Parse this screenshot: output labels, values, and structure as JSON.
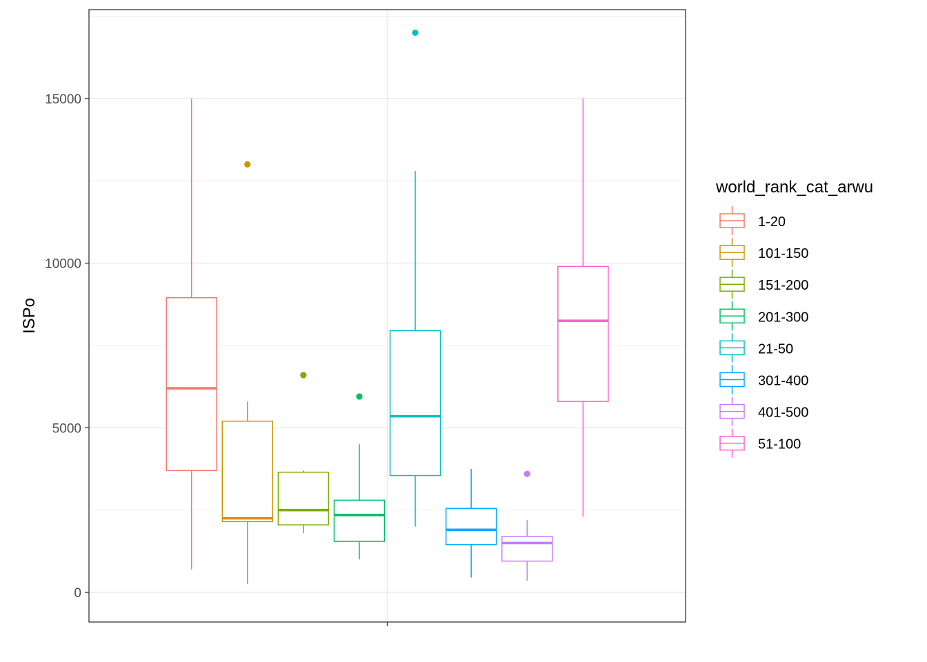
{
  "chart_data": {
    "type": "boxplot",
    "title": "",
    "xlabel": "",
    "ylabel": "ISPo",
    "ylim": [
      -900,
      17700
    ],
    "yticks": [
      0,
      5000,
      10000,
      15000
    ],
    "ytick_labels": [
      "0",
      "5000",
      "10000",
      "15000"
    ],
    "grid": true,
    "legend": {
      "title": "world_rank_cat_arwu",
      "position": "right"
    },
    "series": [
      {
        "name": "1-20",
        "color": "#F8766D",
        "min": 700,
        "q1": 3700,
        "median": 6200,
        "q3": 8950,
        "max": 15000,
        "outliers": []
      },
      {
        "name": "101-150",
        "color": "#CD9600",
        "min": 250,
        "q1": 2150,
        "median": 2250,
        "q3": 5200,
        "max": 5800,
        "outliers": [
          13000
        ]
      },
      {
        "name": "151-200",
        "color": "#7CAE00",
        "min": 1800,
        "q1": 2050,
        "median": 2500,
        "q3": 3650,
        "max": 3700,
        "outliers": [
          6600
        ]
      },
      {
        "name": "201-300",
        "color": "#00BE67",
        "min": 1000,
        "q1": 1550,
        "median": 2350,
        "q3": 2800,
        "max": 4500,
        "outliers": [
          5950
        ]
      },
      {
        "name": "21-50",
        "color": "#00BFC4",
        "min": 2000,
        "q1": 3550,
        "median": 5350,
        "q3": 7950,
        "max": 12800,
        "outliers": [
          17000
        ]
      },
      {
        "name": "301-400",
        "color": "#00A9FF",
        "min": 450,
        "q1": 1450,
        "median": 1900,
        "q3": 2550,
        "max": 3750,
        "outliers": []
      },
      {
        "name": "401-500",
        "color": "#C77CFF",
        "min": 350,
        "q1": 950,
        "median": 1500,
        "q3": 1700,
        "max": 2200,
        "outliers": [
          3600
        ]
      },
      {
        "name": "51-100",
        "color": "#FF61CC",
        "min": 2300,
        "q1": 5800,
        "median": 8250,
        "q3": 9900,
        "max": 15000,
        "outliers": []
      }
    ]
  }
}
